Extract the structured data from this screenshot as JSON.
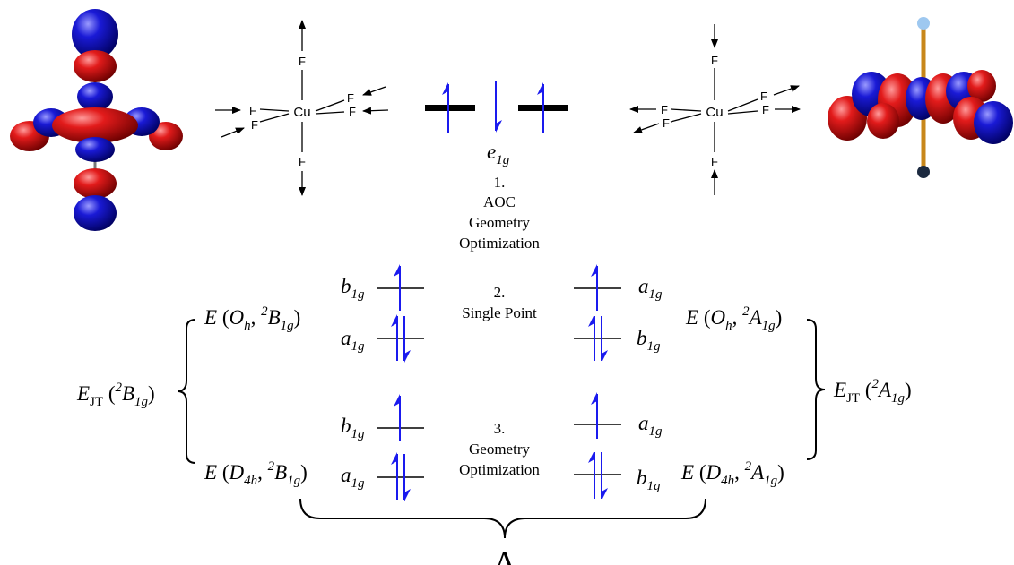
{
  "colors": {
    "lobe_red": "#d01010",
    "lobe_blue": "#1010c8",
    "electron_arrow": "#1a1aee",
    "bond_orange": "#c8871a",
    "ink": "#000000"
  },
  "molecules": {
    "left": {
      "center": "Cu",
      "axial_top": "F",
      "axial_bottom": "F",
      "eq_left_top": "F",
      "eq_left_bottom": "F",
      "eq_right_top": "F",
      "eq_right_bottom": "F"
    },
    "right": {
      "center": "Cu",
      "axial_top": "F",
      "axial_bottom": "F",
      "eq_left_top": "F",
      "eq_left_bottom": "F",
      "eq_right_top": "F",
      "eq_right_bottom": "F"
    }
  },
  "degenerate": {
    "label_main": "e",
    "label_sub": "1g"
  },
  "steps": {
    "step1": {
      "number": "1.",
      "line1": "AOC",
      "line2": "Geometry",
      "line3": "Optimization"
    },
    "step2": {
      "number": "2.",
      "line1": "Single Point"
    },
    "step3": {
      "number": "3.",
      "line1": "Geometry",
      "line2": "Optimization"
    }
  },
  "levels": {
    "b": "b",
    "a": "a",
    "sub": "1g"
  },
  "energies": {
    "E": "E",
    "Oh": "O",
    "Oh_sub": "h",
    "D4h": "D",
    "D4h_sub": "4h",
    "B_term_sup": "2",
    "B_term": "B",
    "A_term": "A",
    "term_sub": "1g",
    "EJT": "E",
    "EJT_sub": "JT"
  },
  "delta": "Δ"
}
